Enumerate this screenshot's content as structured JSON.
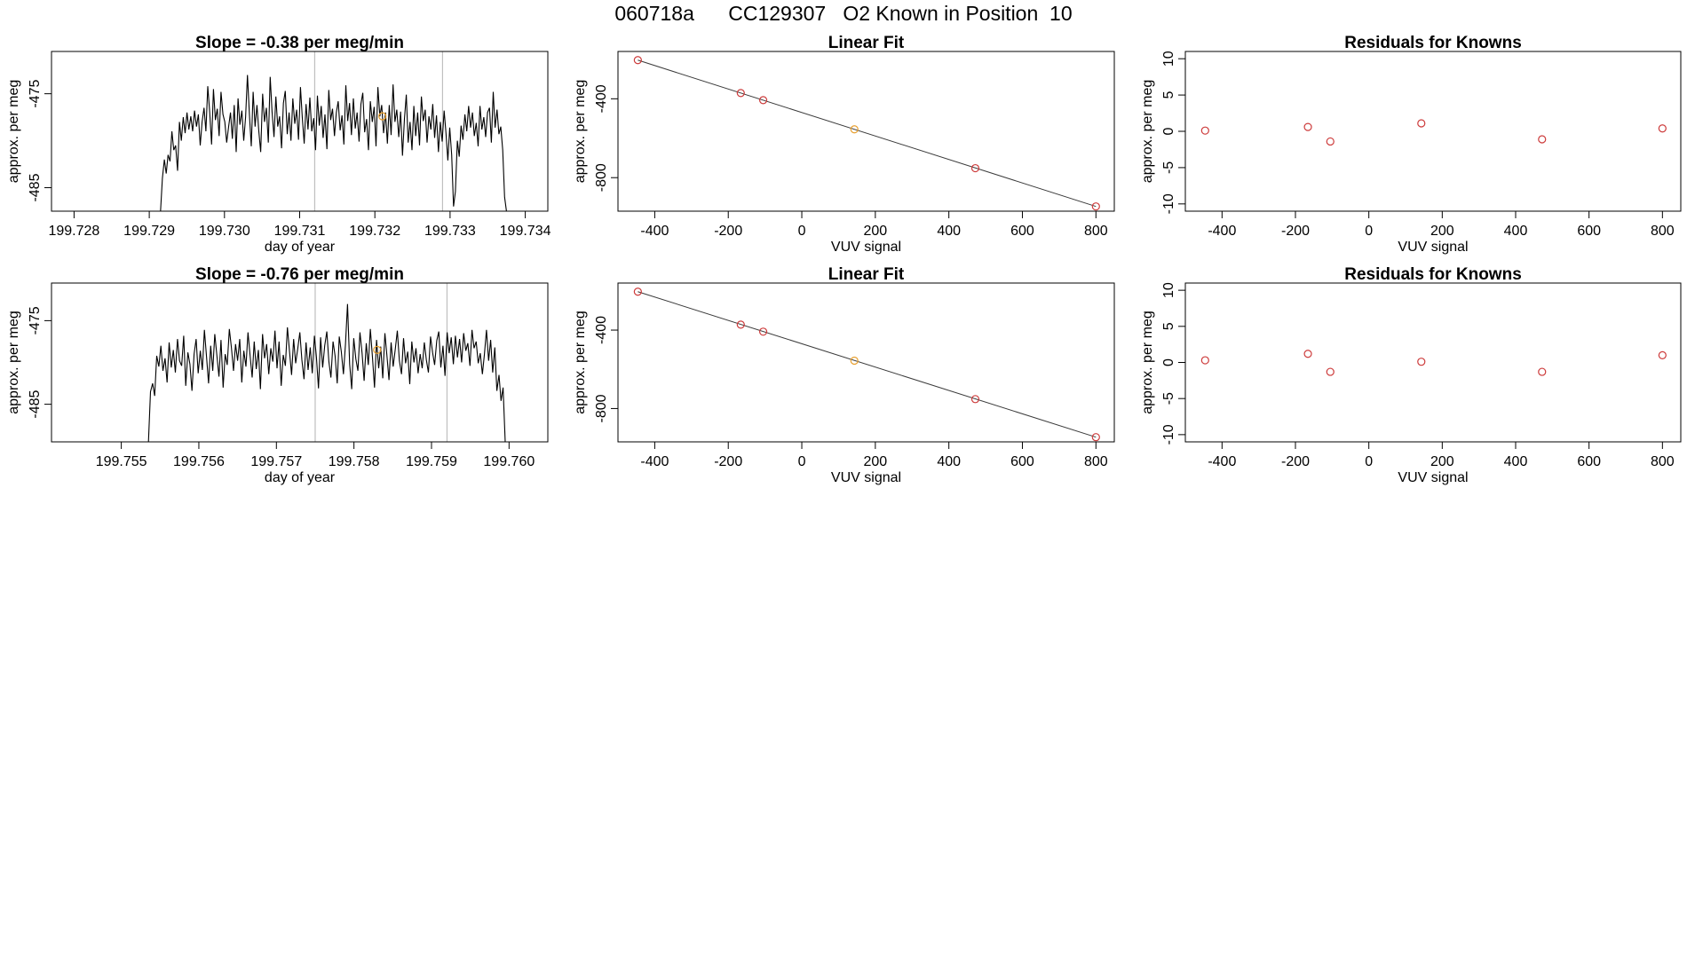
{
  "page_title": "060718a      CC129307   O2 Known in Position  10",
  "colors": {
    "trace": "#000000",
    "point": "#cd3b3b",
    "highlight": "#e8a030",
    "grid": "#bfbfbf",
    "axis": "#000000"
  },
  "chart_data": [
    {
      "id": "ts1",
      "type": "line",
      "title": "Slope =  -0.38  per meg/min",
      "xlabel": "day of year",
      "ylabel": "approx. per meg",
      "xlim": [
        199.7277,
        199.7343
      ],
      "ylim": [
        -487.5,
        -470.5
      ],
      "xticks": [
        199.728,
        199.729,
        199.73,
        199.731,
        199.732,
        199.733,
        199.734
      ],
      "xtick_labels": [
        "199.728",
        "199.729",
        "199.730",
        "199.731",
        "199.732",
        "199.733",
        "199.734"
      ],
      "yticks": [
        -485,
        -475
      ],
      "ytick_labels": [
        "-485",
        "-475"
      ],
      "vlines": [
        199.7312,
        199.7329
      ],
      "highlight_point": {
        "x": 199.7321,
        "y": -477.4
      },
      "series": [
        {
          "x_start": 199.72915,
          "x_end": 199.73375,
          "y": [
            -487.5,
            -484.0,
            -482.0,
            -483.5,
            -481.5,
            -482.2,
            -479.0,
            -481.0,
            -480.5,
            -483.2,
            -478.0,
            -480.0,
            -477.5,
            -479.2,
            -477.0,
            -478.8,
            -477.4,
            -479.0,
            -476.8,
            -478.5,
            -477.2,
            -480.5,
            -478.0,
            -476.5,
            -479.0,
            -474.2,
            -477.0,
            -480.4,
            -474.5,
            -477.8,
            -476.6,
            -479.5,
            -474.8,
            -477.2,
            -478.0,
            -480.2,
            -478.5,
            -477.0,
            -479.8,
            -476.2,
            -481.2,
            -475.5,
            -478.3,
            -476.8,
            -480.0,
            -477.5,
            -473.0,
            -477.2,
            -480.6,
            -474.8,
            -478.5,
            -476.2,
            -479.0,
            -481.2,
            -475.0,
            -478.0,
            -476.5,
            -480.2,
            -473.2,
            -476.9,
            -479.6,
            -475.3,
            -478.5,
            -477.4,
            -480.8,
            -476.0,
            -474.7,
            -479.3,
            -477.0,
            -480.0,
            -475.5,
            -478.2,
            -476.7,
            -479.9,
            -474.3,
            -477.6,
            -480.3,
            -476.1,
            -478.8,
            -475.4,
            -479.0,
            -477.6,
            -481.0,
            -475.2,
            -478.4,
            -476.3,
            -479.7,
            -477.2,
            -480.9,
            -474.6,
            -477.8,
            -476.6,
            -479.5,
            -477.0,
            -475.8,
            -478.9,
            -477.3,
            -480.4,
            -474.1,
            -477.9,
            -476.0,
            -479.4,
            -475.5,
            -478.7,
            -477.0,
            -480.1,
            -476.1,
            -474.9,
            -479.1,
            -477.7,
            -481.0,
            -475.8,
            -478.0,
            -476.4,
            -480.6,
            -474.3,
            -477.4,
            -476.2,
            -479.2,
            -477.0,
            -480.3,
            -476.2,
            -479.4,
            -474.0,
            -478.0,
            -476.7,
            -479.6,
            -476.9,
            -481.6,
            -477.7,
            -475.1,
            -480.2,
            -478.0,
            -481.0,
            -476.3,
            -479.5,
            -477.0,
            -480.5,
            -475.3,
            -477.9,
            -476.7,
            -480.2,
            -477.4,
            -478.8,
            -476.1,
            -479.7,
            -477.3,
            -481.2,
            -478.0,
            -480.1,
            -476.8,
            -479.2,
            -482.1,
            -478.6,
            -481.5,
            -487.0,
            -485.4,
            -480.0,
            -481.7,
            -478.4,
            -479.9,
            -477.2,
            -479.0,
            -476.3,
            -478.6,
            -477.0,
            -479.5,
            -478.1,
            -480.6,
            -476.3,
            -478.8,
            -477.5,
            -479.6,
            -477.0,
            -476.5,
            -480.2,
            -474.8,
            -478.6,
            -476.7,
            -479.3,
            -478.5,
            -481.0,
            -486.0,
            -487.5
          ]
        }
      ]
    },
    {
      "id": "fit1",
      "type": "scatter",
      "title": "Linear Fit",
      "xlabel": "VUV signal",
      "ylabel": "approx. per meg",
      "xlim": [
        -500,
        850
      ],
      "ylim": [
        -970,
        -160
      ],
      "xticks": [
        -400,
        -200,
        0,
        200,
        400,
        600,
        800
      ],
      "xtick_labels": [
        "-400",
        "-200",
        "0",
        "200",
        "400",
        "600",
        "800"
      ],
      "yticks": [
        -800,
        -400
      ],
      "ytick_labels": [
        "-800",
        "-400"
      ],
      "fit_line": [
        [
          -446,
          -204
        ],
        [
          800,
          -946
        ]
      ],
      "points": [
        {
          "x": -446,
          "y": -204,
          "c": "point"
        },
        {
          "x": -166,
          "y": -371,
          "c": "point"
        },
        {
          "x": -105,
          "y": -407,
          "c": "point"
        },
        {
          "x": 143,
          "y": -555,
          "c": "highlight"
        },
        {
          "x": 472,
          "y": -752,
          "c": "point"
        },
        {
          "x": 800,
          "y": -946,
          "c": "point"
        }
      ]
    },
    {
      "id": "res1",
      "type": "scatter",
      "title": "Residuals for Knowns",
      "xlabel": "VUV signal",
      "ylabel": "approx. per meg",
      "xlim": [
        -500,
        850
      ],
      "ylim": [
        -11,
        11
      ],
      "xticks": [
        -400,
        -200,
        0,
        200,
        400,
        600,
        800
      ],
      "xtick_labels": [
        "-400",
        "-200",
        "0",
        "200",
        "400",
        "600",
        "800"
      ],
      "yticks": [
        -10,
        -5,
        0,
        5,
        10
      ],
      "ytick_labels": [
        "-10",
        "-5",
        "0",
        "5",
        "10"
      ],
      "points": [
        {
          "x": -446,
          "y": 0.1,
          "c": "point"
        },
        {
          "x": -166,
          "y": 0.6,
          "c": "point"
        },
        {
          "x": -105,
          "y": -1.4,
          "c": "point"
        },
        {
          "x": 143,
          "y": 1.1,
          "c": "point"
        },
        {
          "x": 472,
          "y": -1.1,
          "c": "point"
        },
        {
          "x": 800,
          "y": 0.4,
          "c": "point"
        }
      ]
    },
    {
      "id": "ts2",
      "type": "line",
      "title": "Slope =  -0.76  per meg/min",
      "xlabel": "day of year",
      "ylabel": "approx. per meg",
      "xlim": [
        199.7541,
        199.7605
      ],
      "ylim": [
        -489.5,
        -470.5
      ],
      "xticks": [
        199.755,
        199.756,
        199.757,
        199.758,
        199.759,
        199.76
      ],
      "xtick_labels": [
        "199.755",
        "199.756",
        "199.757",
        "199.758",
        "199.759",
        "199.760"
      ],
      "yticks": [
        -485,
        -475
      ],
      "ytick_labels": [
        "-485",
        "-475"
      ],
      "vlines": [
        199.7575,
        199.7592
      ],
      "highlight_point": {
        "x": 199.7583,
        "y": -478.5
      },
      "series": [
        {
          "x_start": 199.75535,
          "x_end": 199.75995,
          "y": [
            -489.5,
            -483.5,
            -482.5,
            -484.0,
            -479.2,
            -480.5,
            -478.0,
            -481.0,
            -479.5,
            -482.4,
            -477.6,
            -480.6,
            -478.5,
            -481.2,
            -477.2,
            -479.8,
            -480.4,
            -476.8,
            -482.8,
            -478.8,
            -480.2,
            -483.4,
            -479.0,
            -477.2,
            -481.3,
            -478.6,
            -480.9,
            -476.1,
            -479.3,
            -482.5,
            -478.0,
            -481.0,
            -476.6,
            -479.2,
            -481.7,
            -477.3,
            -483.0,
            -479.0,
            -480.3,
            -476.0,
            -478.2,
            -481.0,
            -477.8,
            -479.8,
            -477.2,
            -482.4,
            -478.6,
            -480.5,
            -476.4,
            -479.1,
            -481.8,
            -477.5,
            -480.8,
            -478.5,
            -483.2,
            -476.6,
            -479.5,
            -477.8,
            -481.4,
            -478.3,
            -479.9,
            -476.2,
            -480.7,
            -477.5,
            -482.8,
            -479.1,
            -480.4,
            -475.8,
            -478.6,
            -481.5,
            -477.2,
            -480.1,
            -478.3,
            -476.4,
            -479.7,
            -482.0,
            -477.6,
            -480.9,
            -478.2,
            -481.3,
            -476.8,
            -479.4,
            -483.1,
            -477.0,
            -480.6,
            -478.0,
            -476.3,
            -479.9,
            -481.8,
            -477.5,
            -479.2,
            -482.5,
            -476.9,
            -478.7,
            -481.4,
            -477.8,
            -473.0,
            -480.2,
            -483.2,
            -477.1,
            -479.6,
            -481.0,
            -476.4,
            -478.9,
            -482.2,
            -477.7,
            -480.3,
            -476.0,
            -479.4,
            -483.0,
            -477.3,
            -480.7,
            -478.1,
            -481.9,
            -476.5,
            -479.2,
            -482.1,
            -477.6,
            -480.5,
            -478.4,
            -476.2,
            -479.8,
            -481.4,
            -477.1,
            -480.1,
            -478.7,
            -482.6,
            -477.5,
            -480.0,
            -478.3,
            -481.3,
            -479.0,
            -480.7,
            -477.6,
            -479.7,
            -481.2,
            -476.9,
            -478.8,
            -480.3,
            -477.4,
            -476.3,
            -480.6,
            -478.0,
            -481.6,
            -476.4,
            -478.9,
            -477.0,
            -480.2,
            -476.8,
            -479.4,
            -477.2,
            -480.0,
            -476.5,
            -478.6,
            -477.7,
            -480.4,
            -476.1,
            -478.3,
            -477.5,
            -480.1,
            -478.9,
            -481.4,
            -479.0,
            -476.1,
            -479.8,
            -477.3,
            -481.2,
            -478.2,
            -483.4,
            -481.5,
            -484.6,
            -483.0,
            -489.5
          ]
        }
      ]
    },
    {
      "id": "fit2",
      "type": "scatter",
      "title": "Linear Fit",
      "xlabel": "VUV signal",
      "ylabel": "approx. per meg",
      "xlim": [
        -500,
        850
      ],
      "ylim": [
        -970,
        -160
      ],
      "xticks": [
        -400,
        -200,
        0,
        200,
        400,
        600,
        800
      ],
      "xtick_labels": [
        "-400",
        "-200",
        "0",
        "200",
        "400",
        "600",
        "800"
      ],
      "yticks": [
        -800,
        -400
      ],
      "ytick_labels": [
        "-800",
        "-400"
      ],
      "fit_line": [
        [
          -446,
          -204
        ],
        [
          800,
          -946
        ]
      ],
      "points": [
        {
          "x": -446,
          "y": -204,
          "c": "point"
        },
        {
          "x": -166,
          "y": -372,
          "c": "point"
        },
        {
          "x": -105,
          "y": -408,
          "c": "point"
        },
        {
          "x": 143,
          "y": -556,
          "c": "highlight"
        },
        {
          "x": 472,
          "y": -752,
          "c": "point"
        },
        {
          "x": 800,
          "y": -946,
          "c": "point"
        }
      ]
    },
    {
      "id": "res2",
      "type": "scatter",
      "title": "Residuals for Knowns",
      "xlabel": "VUV signal",
      "ylabel": "approx. per meg",
      "xlim": [
        -500,
        850
      ],
      "ylim": [
        -11,
        11
      ],
      "xticks": [
        -400,
        -200,
        0,
        200,
        400,
        600,
        800
      ],
      "xtick_labels": [
        "-400",
        "-200",
        "0",
        "200",
        "400",
        "600",
        "800"
      ],
      "yticks": [
        -10,
        -5,
        0,
        5,
        10
      ],
      "ytick_labels": [
        "-10",
        "-5",
        "0",
        "5",
        "10"
      ],
      "points": [
        {
          "x": -446,
          "y": 0.3,
          "c": "point"
        },
        {
          "x": -166,
          "y": 1.2,
          "c": "point"
        },
        {
          "x": -105,
          "y": -1.3,
          "c": "point"
        },
        {
          "x": 143,
          "y": 0.1,
          "c": "point"
        },
        {
          "x": 472,
          "y": -1.3,
          "c": "point"
        },
        {
          "x": 800,
          "y": 1.0,
          "c": "point"
        }
      ]
    }
  ]
}
